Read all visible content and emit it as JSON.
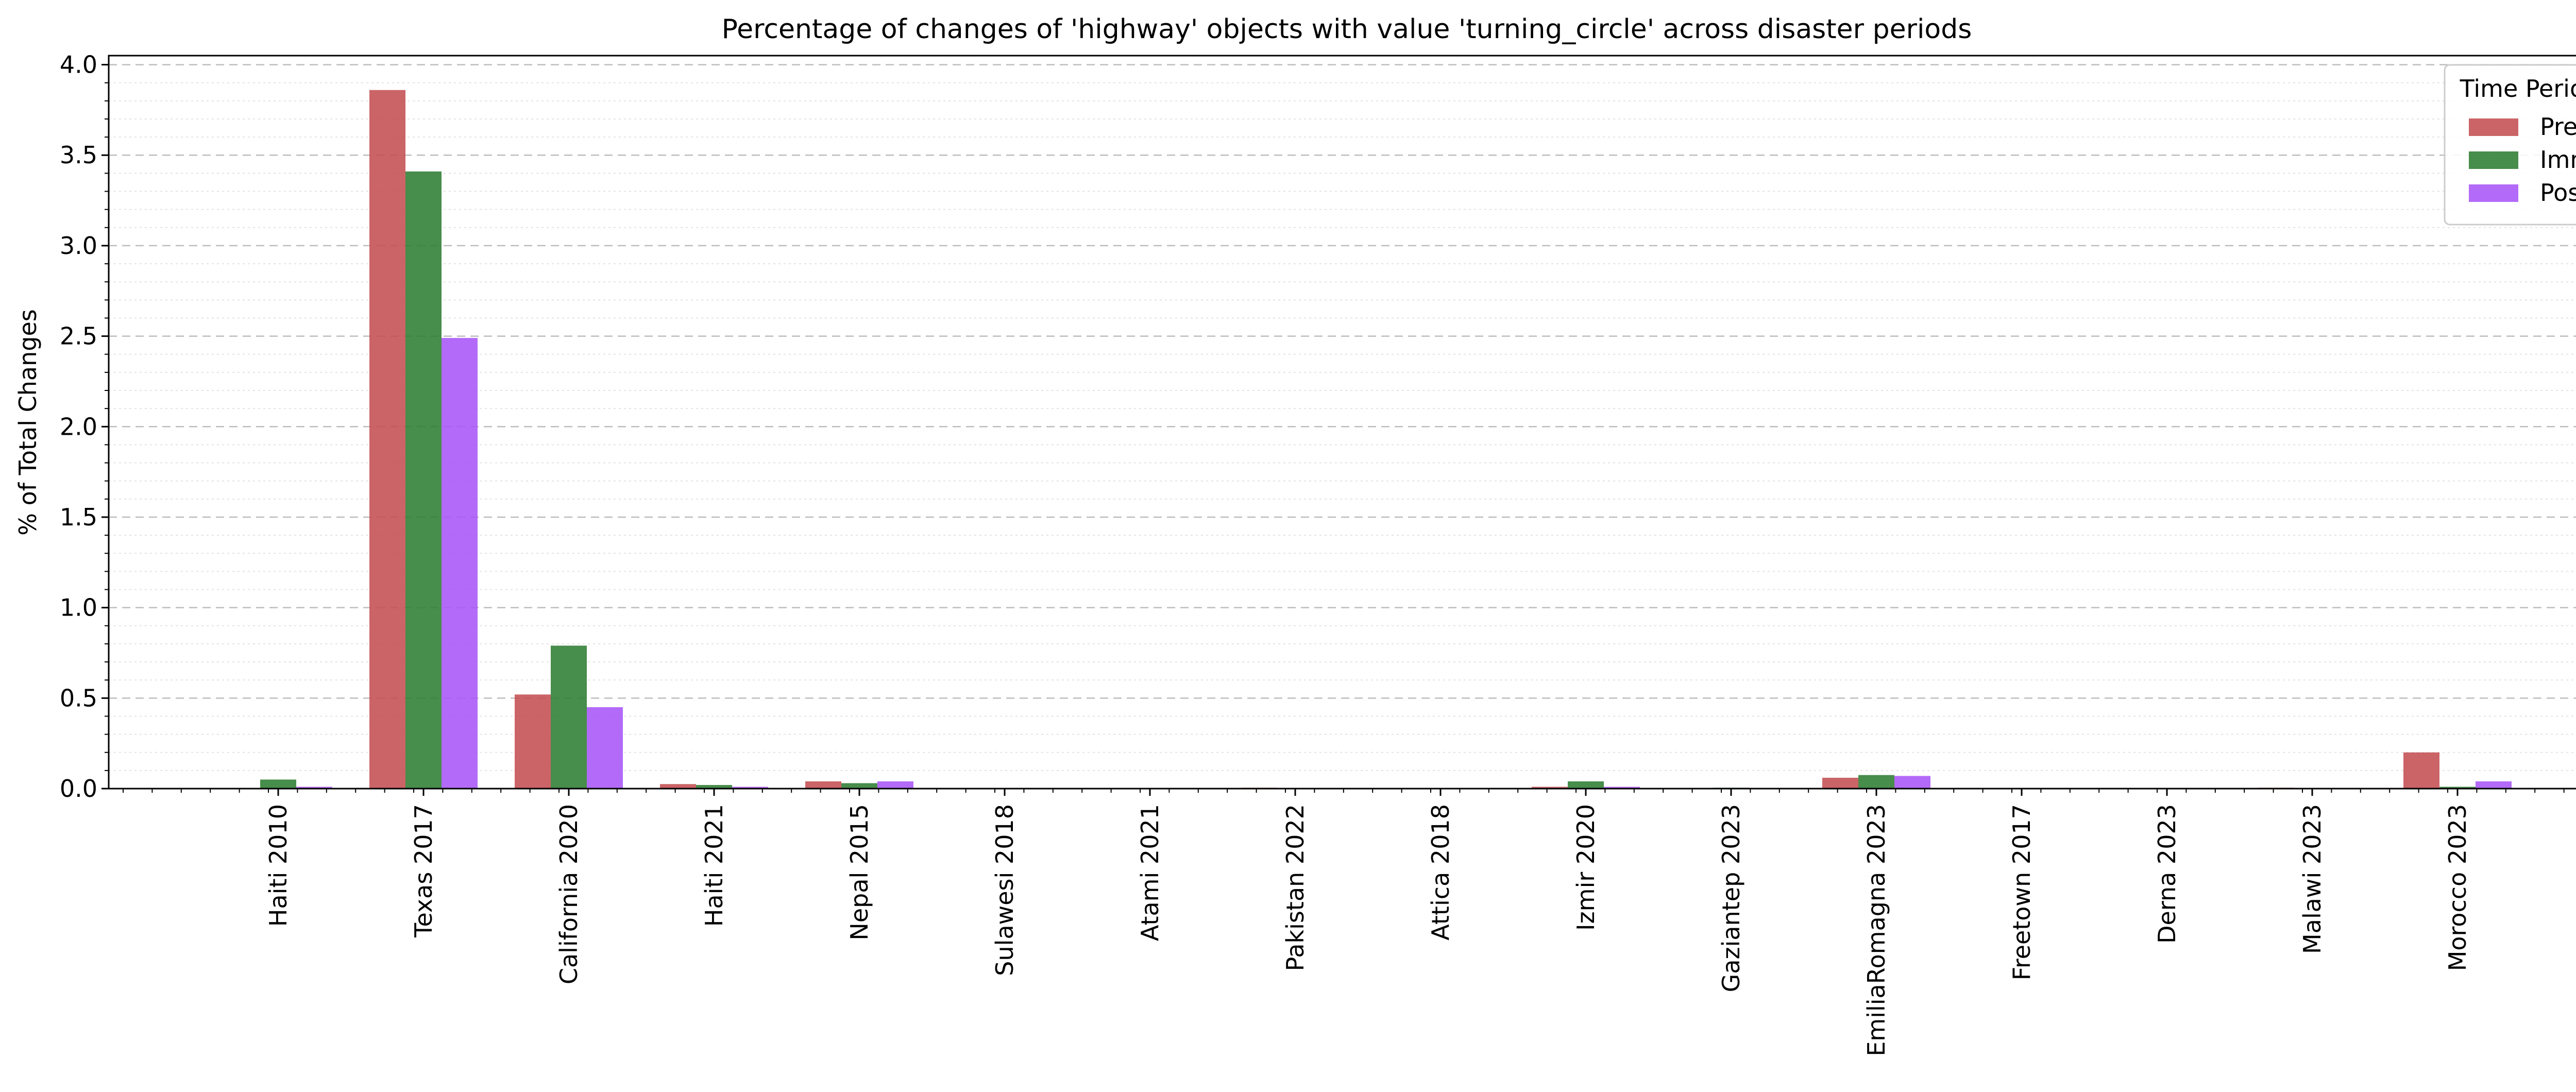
{
  "chart_data": {
    "type": "bar",
    "title": "Percentage of changes of 'highway' objects with value 'turning_circle' across disaster periods",
    "xlabel": "",
    "ylabel": "% of Total Changes",
    "ylim": [
      0,
      4.05
    ],
    "yticks": [
      "0.0",
      "0.5",
      "1.0",
      "1.5",
      "2.0",
      "2.5",
      "3.0",
      "3.5",
      "4.0"
    ],
    "grid": true,
    "legend_title": "Time Period",
    "legend_position": "top-right",
    "categories": [
      "Haiti 2010",
      "Texas 2017",
      "California 2020",
      "Haiti 2021",
      "Nepal 2015",
      "Sulawesi 2018",
      "Atami 2021",
      "Pakistan 2022",
      "Attica 2018",
      "Izmir 2020",
      "Gaziantep 2023",
      "EmiliaRomagna 2023",
      "Freetown 2017",
      "Derna 2023",
      "Malawi 2023",
      "Morocco 2023"
    ],
    "series": [
      {
        "name": "Pre",
        "color": "#c44e52",
        "values": [
          0.0,
          3.86,
          0.52,
          0.025,
          0.04,
          0.0,
          0.0,
          0.005,
          0.0,
          0.01,
          0.0,
          0.06,
          0.0,
          0.0,
          0.005,
          0.2
        ]
      },
      {
        "name": "Imm",
        "color": "#2e7d32",
        "values": [
          0.05,
          3.41,
          0.79,
          0.02,
          0.03,
          0.0,
          0.0,
          0.0,
          0.0,
          0.04,
          0.005,
          0.075,
          0.0,
          0.0,
          0.0,
          0.01
        ]
      },
      {
        "name": "Post",
        "color": "#a855f7",
        "values": [
          0.01,
          2.49,
          0.45,
          0.01,
          0.04,
          0.0,
          0.0,
          0.0,
          0.0,
          0.01,
          0.0,
          0.07,
          0.0,
          0.0,
          0.0,
          0.04
        ]
      }
    ]
  }
}
